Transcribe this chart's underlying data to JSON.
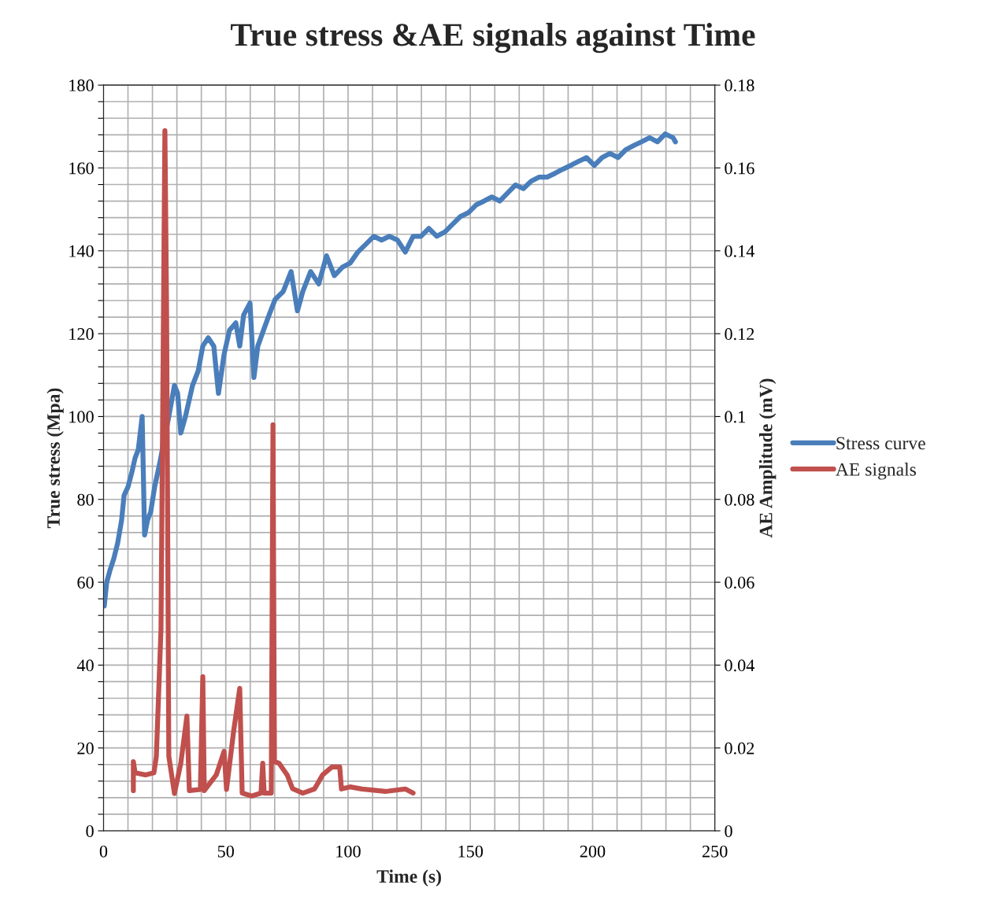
{
  "chart_data": {
    "type": "line",
    "title": "True stress &AE signals against Time",
    "xlabel": "Time (s)",
    "ylabel": "True stress (Mpa)",
    "y2label": "AE Amplitude (mV)",
    "xlim": [
      0,
      250
    ],
    "ylim": [
      0,
      180
    ],
    "y2lim": [
      0,
      0.18
    ],
    "xticks": [
      0,
      {
        "value": 10,
        "label": null
      },
      {
        "value": 20,
        "label": null
      },
      {
        "value": 30,
        "label": null
      },
      {
        "value": 40,
        "label": null
      },
      50,
      {
        "value": 60,
        "label": null
      },
      {
        "value": 70,
        "label": null
      },
      {
        "value": 80,
        "label": null
      },
      {
        "value": 90,
        "label": null
      },
      100,
      {
        "value": 110,
        "label": null
      },
      {
        "value": 120,
        "label": null
      },
      {
        "value": 130,
        "label": null
      },
      {
        "value": 140,
        "label": null
      },
      150,
      {
        "value": 160,
        "label": null
      },
      {
        "value": 170,
        "label": null
      },
      {
        "value": 180,
        "label": null
      },
      {
        "value": 190,
        "label": null
      },
      200,
      {
        "value": 210,
        "label": null
      },
      {
        "value": 220,
        "label": null
      },
      {
        "value": 230,
        "label": null
      },
      {
        "value": 240,
        "label": null
      },
      250
    ],
    "yticks": [
      0,
      {
        "value": 4,
        "label": null
      },
      {
        "value": 8,
        "label": null
      },
      {
        "value": 12,
        "label": null
      },
      {
        "value": 16,
        "label": null
      },
      20,
      {
        "value": 24,
        "label": null
      },
      {
        "value": 28,
        "label": null
      },
      {
        "value": 32,
        "label": null
      },
      {
        "value": 36,
        "label": null
      },
      40,
      {
        "value": 44,
        "label": null
      },
      {
        "value": 48,
        "label": null
      },
      {
        "value": 52,
        "label": null
      },
      {
        "value": 56,
        "label": null
      },
      60,
      {
        "value": 64,
        "label": null
      },
      {
        "value": 68,
        "label": null
      },
      {
        "value": 72,
        "label": null
      },
      {
        "value": 76,
        "label": null
      },
      80,
      {
        "value": 84,
        "label": null
      },
      {
        "value": 88,
        "label": null
      },
      {
        "value": 92,
        "label": null
      },
      {
        "value": 96,
        "label": null
      },
      100,
      {
        "value": 104,
        "label": null
      },
      {
        "value": 108,
        "label": null
      },
      {
        "value": 112,
        "label": null
      },
      {
        "value": 116,
        "label": null
      },
      120,
      {
        "value": 124,
        "label": null
      },
      {
        "value": 128,
        "label": null
      },
      {
        "value": 132,
        "label": null
      },
      {
        "value": 136,
        "label": null
      },
      140,
      {
        "value": 144,
        "label": null
      },
      {
        "value": 148,
        "label": null
      },
      {
        "value": 152,
        "label": null
      },
      {
        "value": 156,
        "label": null
      },
      160,
      {
        "value": 164,
        "label": null
      },
      {
        "value": 168,
        "label": null
      },
      {
        "value": 172,
        "label": null
      },
      {
        "value": 176,
        "label": null
      },
      180
    ],
    "y2ticks": [
      0,
      0.02,
      0.04,
      0.06,
      0.08,
      0.1,
      0.12,
      0.14,
      0.16,
      0.18
    ],
    "grid": true,
    "legend": "right",
    "line_style": "solid",
    "marker": "none",
    "series": [
      {
        "name": "Stress curve",
        "color": "#4a7ebb",
        "x": [
          0.3,
          1.3,
          2.6,
          4.2,
          5.8,
          7.4,
          8.4,
          10,
          11.6,
          12.9,
          14.2,
          15.8,
          16.8,
          18,
          19.3,
          20.9,
          22.9,
          26.7,
          29,
          30.3,
          31.6,
          33.5,
          36.4,
          38.7,
          40.6,
          42.8,
          45.1,
          47,
          49.3,
          51.5,
          54.1,
          55.7,
          57.3,
          59.9,
          61.5,
          63.1,
          65.4,
          67.7,
          70.2,
          73.5,
          76.7,
          79.3,
          81.5,
          84.7,
          88,
          91.2,
          94.4,
          97.6,
          100.8,
          104,
          107.3,
          110.5,
          113.7,
          116.9,
          120.2,
          123.4,
          126.6,
          129.8,
          133,
          136.3,
          139.5,
          142.7,
          146,
          149.2,
          152.4,
          155.6,
          158.8,
          162,
          165.3,
          168.5,
          171.7,
          174.9,
          178.2,
          181.4,
          184.6,
          187.8,
          191,
          194.3,
          197.5,
          200.7,
          203.9,
          207.1,
          210.4,
          213.6,
          216.8,
          220,
          223.3,
          226.5,
          229.7,
          232.9,
          233.9
        ],
        "values": [
          54.3,
          60,
          62.8,
          65.7,
          69.5,
          75,
          81,
          83,
          86.6,
          90,
          92,
          100,
          71.4,
          75,
          77,
          83,
          88.5,
          100,
          107.5,
          105.6,
          96,
          100,
          107.5,
          111,
          117,
          119,
          117,
          105.6,
          115,
          120.8,
          122.6,
          117,
          124.5,
          127.4,
          109.4,
          117,
          120.8,
          124.5,
          128.3,
          130.2,
          135,
          125.5,
          130.2,
          135,
          132,
          138.8,
          134,
          136,
          137,
          139.7,
          141.6,
          143.5,
          142.6,
          143.5,
          142.6,
          139.7,
          143.5,
          143.5,
          145.4,
          143.5,
          144.5,
          146.4,
          148.3,
          149.2,
          151.1,
          152,
          153,
          152,
          154,
          155.9,
          155,
          156.8,
          157.8,
          157.8,
          158.7,
          159.7,
          160.6,
          161.6,
          162.5,
          160.6,
          162.5,
          163.5,
          162.5,
          164.4,
          165.4,
          166.3,
          167.3,
          166.3,
          168.2,
          167.3,
          166.3
        ]
      },
      {
        "name": "AE signals",
        "color": "#c0504d",
        "axis": "y2",
        "x": [
          12.2,
          12.2,
          12.9,
          17.1,
          20.6,
          21.6,
          23.5,
          25.1,
          25.8,
          26.7,
          29,
          31.6,
          34.1,
          35.1,
          39.6,
          40.6,
          41.2,
          46.1,
          49.3,
          50.3,
          53.2,
          55.7,
          56.7,
          60.6,
          64.4,
          65.1,
          65.7,
          68.6,
          69.3,
          69.9,
          71.8,
          75.1,
          77.3,
          81.5,
          86.3,
          89.6,
          93.4,
          96.6,
          97.3,
          100.8,
          105.7,
          115.3,
          123.4,
          126.6
        ],
        "values": [
          0.0097,
          0.0167,
          0.014,
          0.0135,
          0.014,
          0.018,
          0.0486,
          0.169,
          0.125,
          0.018,
          0.009,
          0.0163,
          0.0277,
          0.0097,
          0.01,
          0.0372,
          0.0097,
          0.0135,
          0.0192,
          0.01,
          0.024,
          0.0344,
          0.0091,
          0.0084,
          0.0091,
          0.0163,
          0.0091,
          0.0091,
          0.098,
          0.0167,
          0.0163,
          0.0135,
          0.0102,
          0.0091,
          0.0101,
          0.0135,
          0.0154,
          0.0154,
          0.0101,
          0.0106,
          0.0101,
          0.0095,
          0.0101,
          0.0091
        ]
      }
    ]
  }
}
